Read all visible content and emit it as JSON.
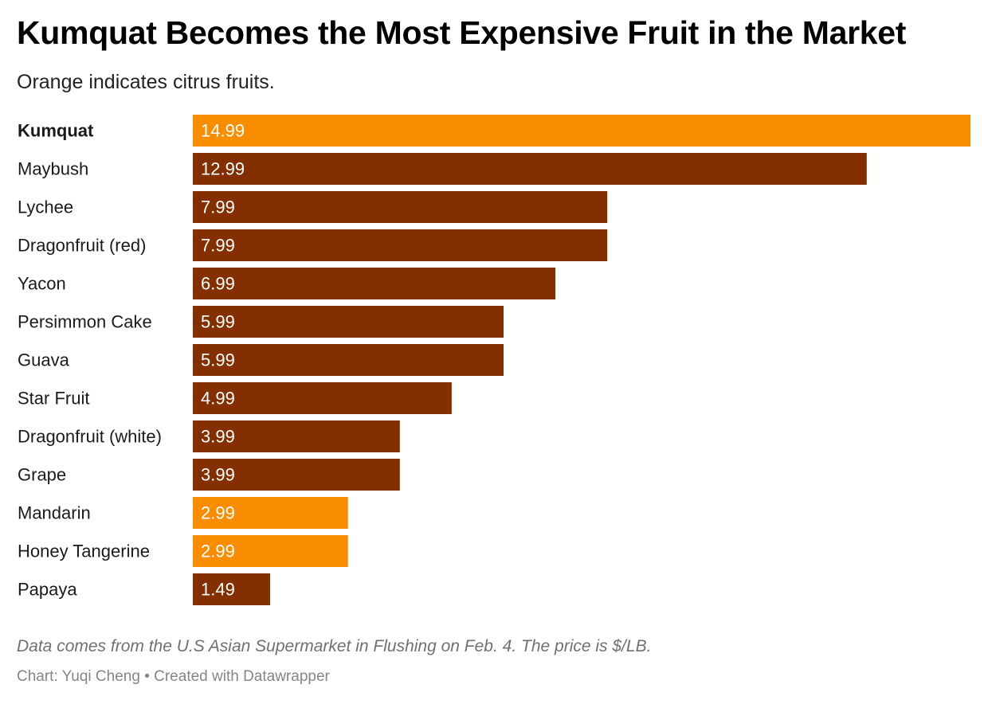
{
  "header": {
    "title": "Kumquat Becomes the Most Expensive Fruit in the Market",
    "subtitle": "Orange indicates citrus fruits."
  },
  "footer": {
    "notes": "Data comes from the U.S Asian Supermarket in Flushing on Feb. 4. The price is $/LB.",
    "byline": "Chart: Yuqi Cheng • Created with Datawrapper"
  },
  "colors": {
    "citrus": "#FA8C00",
    "other": "#832F00",
    "bar_label": "#FFFFFF",
    "category_label": "#1A1A1A"
  },
  "chart_data": {
    "type": "bar",
    "orientation": "horizontal",
    "title": "Kumquat Becomes the Most Expensive Fruit in the Market",
    "subtitle": "Orange indicates citrus fruits.",
    "xlabel": "",
    "ylabel": "",
    "xlim": [
      0,
      14.99
    ],
    "grid": false,
    "legend": "none",
    "highlighted_category": "Kumquat",
    "categories": [
      "Kumquat",
      "Maybush",
      "Lychee",
      "Dragonfruit (red)",
      "Yacon",
      "Persimmon Cake",
      "Guava",
      "Star Fruit",
      "Dragonfruit (white)",
      "Grape",
      "Mandarin",
      "Honey Tangerine",
      "Papaya"
    ],
    "values": [
      14.99,
      12.99,
      7.99,
      7.99,
      6.99,
      5.99,
      5.99,
      4.99,
      3.99,
      3.99,
      2.99,
      2.99,
      1.49
    ],
    "labels": [
      "14.99",
      "12.99",
      "7.99",
      "7.99",
      "6.99",
      "5.99",
      "5.99",
      "4.99",
      "3.99",
      "3.99",
      "2.99",
      "2.99",
      "1.49"
    ],
    "citrus": [
      true,
      false,
      false,
      false,
      false,
      false,
      false,
      false,
      false,
      false,
      true,
      true,
      false
    ]
  }
}
